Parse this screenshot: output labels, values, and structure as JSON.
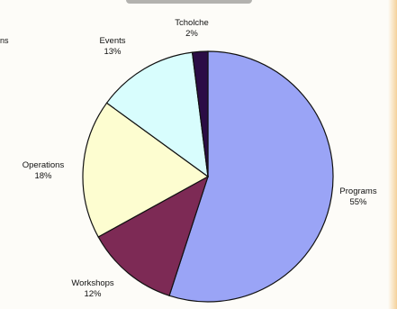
{
  "chart_data": {
    "type": "pie",
    "title": "",
    "edge_fragment": "ns",
    "slices": [
      {
        "label": "Programs",
        "value": 55,
        "value_label": "55%",
        "color": "#9aa4f6"
      },
      {
        "label": "Workshops",
        "value": 12,
        "value_label": "12%",
        "color": "#7d2a55"
      },
      {
        "label": "Operations",
        "value": 18,
        "value_label": "18%",
        "color": "#fdfdd0"
      },
      {
        "label": "Events",
        "value": 13,
        "value_label": "13%",
        "color": "#d8fdfd"
      },
      {
        "label": "Tcholche",
        "value": 2,
        "value_label": "2%",
        "color": "#2b0c45"
      }
    ]
  }
}
